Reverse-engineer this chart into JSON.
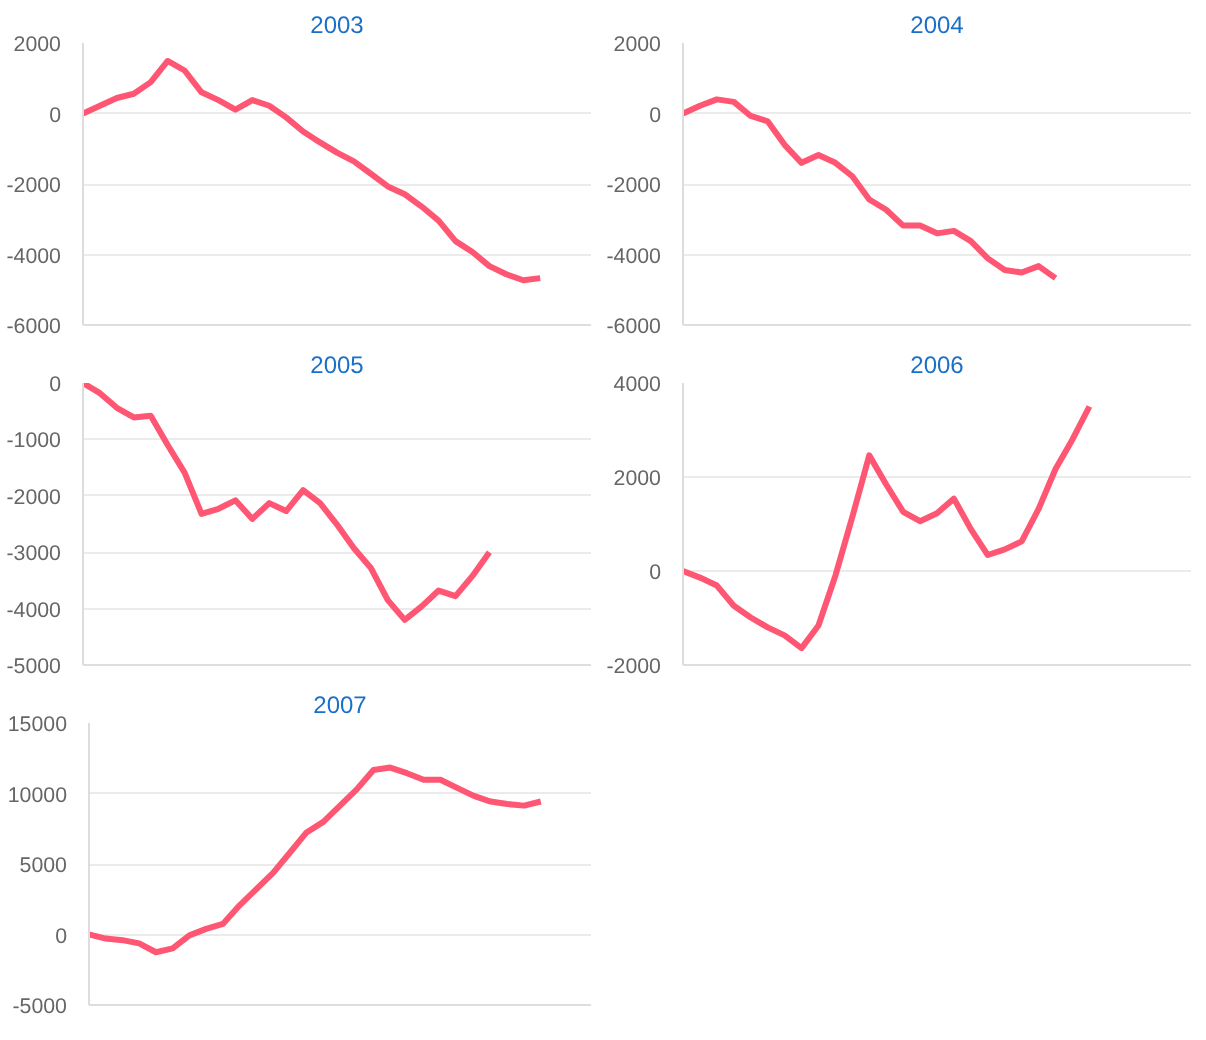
{
  "chart_data": [
    {
      "type": "line",
      "title": "2003",
      "categories": [
        null,
        null,
        null,
        null,
        null,
        null,
        null,
        null,
        null,
        null,
        null,
        null,
        null,
        null,
        null,
        null,
        null,
        null,
        null,
        null,
        null,
        null,
        null,
        null,
        null,
        null,
        null,
        null,
        null,
        null,
        null
      ],
      "series": [
        {
          "color": "#ff5773",
          "values": [
            0,
            220,
            440,
            560,
            890,
            1490,
            1220,
            600,
            380,
            110,
            380,
            220,
            -110,
            -510,
            -820,
            -1110,
            -1360,
            -1710,
            -2070,
            -2290,
            -2640,
            -3040,
            -3620,
            -3930,
            -4330,
            -4560,
            -4730,
            -4670,
            null,
            null,
            null
          ]
        }
      ],
      "ylim": [
        -6000,
        2000
      ],
      "yticks": [
        -6000,
        -4000,
        -2000,
        0,
        2000
      ],
      "grid": "y",
      "tick_labels": "y",
      "marker": "none",
      "line_style": "solid"
    },
    {
      "type": "line",
      "title": "2004",
      "categories": [
        null,
        null,
        null,
        null,
        null,
        null,
        null,
        null,
        null,
        null,
        null,
        null,
        null,
        null,
        null,
        null,
        null,
        null,
        null,
        null,
        null,
        null,
        null,
        null,
        null,
        null,
        null,
        null,
        null,
        null,
        null
      ],
      "series": [
        {
          "color": "#ff5773",
          "values": [
            0,
            220,
            400,
            330,
            -70,
            -220,
            -890,
            -1400,
            -1180,
            -1400,
            -1780,
            -2440,
            -2730,
            -3180,
            -3180,
            -3400,
            -3330,
            -3620,
            -4110,
            -4440,
            -4510,
            -4330,
            -4670,
            null,
            null,
            null,
            null,
            null,
            null,
            null,
            null
          ]
        }
      ],
      "ylim": [
        -6000,
        2000
      ],
      "yticks": [
        -6000,
        -4000,
        -2000,
        0,
        2000
      ],
      "grid": "y",
      "tick_labels": "y",
      "marker": "none",
      "line_style": "solid"
    },
    {
      "type": "line",
      "title": "2005",
      "categories": [
        null,
        null,
        null,
        null,
        null,
        null,
        null,
        null,
        null,
        null,
        null,
        null,
        null,
        null,
        null,
        null,
        null,
        null,
        null,
        null,
        null,
        null,
        null,
        null,
        null,
        null,
        null,
        null,
        null,
        null,
        null
      ],
      "series": [
        {
          "color": "#ff5773",
          "values": [
            0,
            -180,
            -440,
            -610,
            -580,
            -1100,
            -1590,
            -2320,
            -2230,
            -2080,
            -2410,
            -2130,
            -2270,
            -1900,
            -2130,
            -2510,
            -2930,
            -3280,
            -3850,
            -4200,
            -3960,
            -3680,
            -3780,
            -3420,
            -3000,
            null,
            null,
            null,
            null,
            null,
            null
          ]
        }
      ],
      "ylim": [
        -5000,
        0
      ],
      "yticks": [
        -5000,
        -4000,
        -3000,
        -2000,
        -1000,
        0
      ],
      "grid": "y",
      "tick_labels": "y",
      "marker": "none",
      "line_style": "solid"
    },
    {
      "type": "line",
      "title": "2006",
      "categories": [
        null,
        null,
        null,
        null,
        null,
        null,
        null,
        null,
        null,
        null,
        null,
        null,
        null,
        null,
        null,
        null,
        null,
        null,
        null,
        null,
        null,
        null,
        null,
        null,
        null,
        null,
        null,
        null,
        null,
        null,
        null
      ],
      "series": [
        {
          "color": "#ff5773",
          "values": [
            0,
            -140,
            -310,
            -740,
            -990,
            -1200,
            -1370,
            -1640,
            -1160,
            -100,
            1150,
            2460,
            1840,
            1260,
            1060,
            1230,
            1540,
            890,
            340,
            460,
            630,
            1320,
            2170,
            2800,
            3500,
            null,
            null,
            null,
            null,
            null,
            null
          ]
        }
      ],
      "ylim": [
        -2000,
        4000
      ],
      "yticks": [
        -2000,
        0,
        2000,
        4000
      ],
      "grid": "y",
      "tick_labels": "y",
      "marker": "none",
      "line_style": "solid"
    },
    {
      "type": "line",
      "title": "2007",
      "categories": [
        null,
        null,
        null,
        null,
        null,
        null,
        null,
        null,
        null,
        null,
        null,
        null,
        null,
        null,
        null,
        null,
        null,
        null,
        null,
        null,
        null,
        null,
        null,
        null,
        null,
        null,
        null,
        null,
        null,
        null,
        null
      ],
      "series": [
        {
          "color": "#ff5773",
          "values": [
            0,
            -290,
            -400,
            -630,
            -1260,
            -980,
            -60,
            400,
            750,
            2070,
            3220,
            4370,
            5800,
            7240,
            7990,
            9140,
            10290,
            11670,
            11840,
            11440,
            10980,
            10980,
            10400,
            9830,
            9430,
            9250,
            9140,
            9430,
            null,
            null,
            null
          ]
        }
      ],
      "ylim": [
        -5000,
        15000
      ],
      "yticks": [
        -5000,
        0,
        5000,
        10000,
        15000
      ],
      "grid": "y",
      "tick_labels": "y",
      "marker": "none",
      "line_style": "solid"
    }
  ]
}
